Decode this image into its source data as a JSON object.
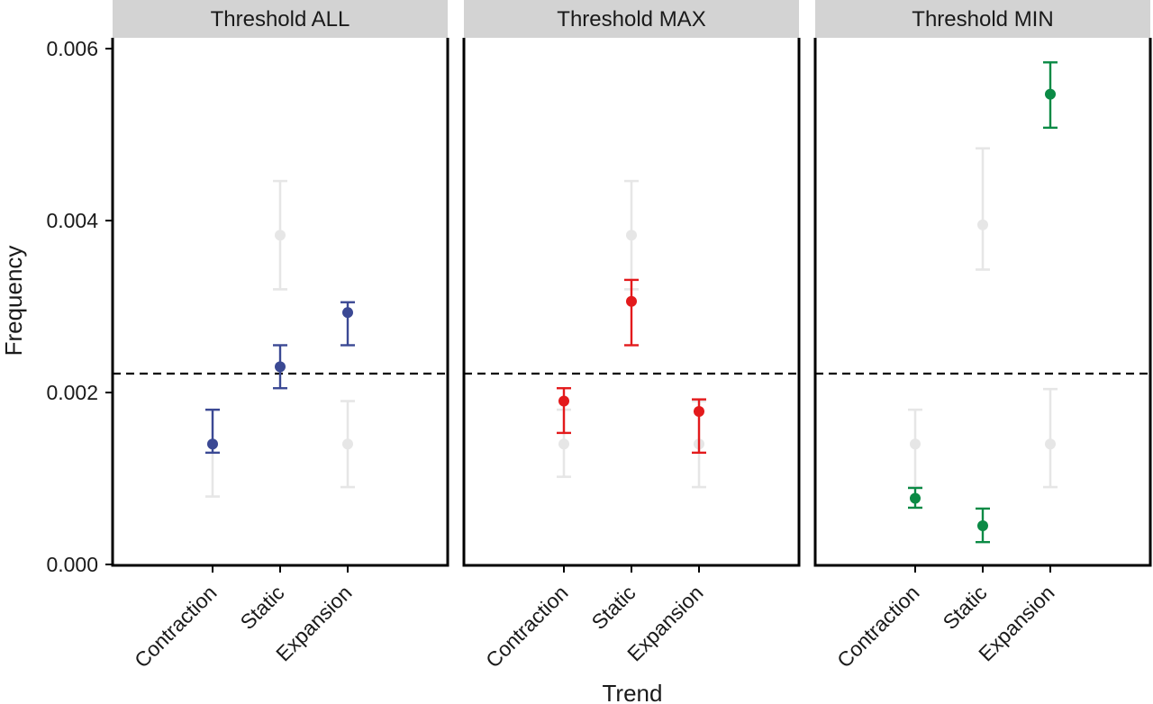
{
  "chart_data": {
    "type": "errorbar",
    "xlabel": "Trend",
    "ylabel": "Frequency",
    "ylim": [
      0,
      0.0061
    ],
    "yticks": [
      0.0,
      0.002,
      0.004,
      0.006
    ],
    "ytick_labels": [
      "0.000",
      "0.002",
      "0.004",
      "0.006"
    ],
    "categories": [
      "Contraction",
      "Static",
      "Expansion"
    ],
    "reference_line": 0.00222,
    "background_color": "#e6e6e6",
    "panels": [
      {
        "title": "Threshold ALL",
        "color": "#3b4994",
        "background": [
          {
            "category": "Contraction",
            "y": 0.0014,
            "low": 0.00079,
            "high": 0.0018
          },
          {
            "category": "Static",
            "y": 0.00383,
            "low": 0.0032,
            "high": 0.00446
          },
          {
            "category": "Expansion",
            "y": 0.0014,
            "low": 0.0009,
            "high": 0.0019
          }
        ],
        "foreground": [
          {
            "category": "Contraction",
            "y": 0.0014,
            "low": 0.0013,
            "high": 0.0018
          },
          {
            "category": "Static",
            "y": 0.0023,
            "low": 0.00205,
            "high": 0.00255
          },
          {
            "category": "Expansion",
            "y": 0.00293,
            "low": 0.00255,
            "high": 0.00305
          }
        ]
      },
      {
        "title": "Threshold MAX",
        "color": "#e31a1c",
        "background": [
          {
            "category": "Contraction",
            "y": 0.0014,
            "low": 0.00102,
            "high": 0.0018
          },
          {
            "category": "Static",
            "y": 0.00383,
            "low": 0.0032,
            "high": 0.00446
          },
          {
            "category": "Expansion",
            "y": 0.0014,
            "low": 0.0009,
            "high": 0.0019
          }
        ],
        "foreground": [
          {
            "category": "Contraction",
            "y": 0.0019,
            "low": 0.00153,
            "high": 0.00205
          },
          {
            "category": "Static",
            "y": 0.00306,
            "low": 0.00255,
            "high": 0.00331
          },
          {
            "category": "Expansion",
            "y": 0.00178,
            "low": 0.0013,
            "high": 0.00192
          }
        ]
      },
      {
        "title": "Threshold MIN",
        "color": "#0b8a45",
        "background": [
          {
            "category": "Contraction",
            "y": 0.0014,
            "low": 0.0009,
            "high": 0.0018
          },
          {
            "category": "Static",
            "y": 0.00395,
            "low": 0.00343,
            "high": 0.00484
          },
          {
            "category": "Expansion",
            "y": 0.0014,
            "low": 0.0009,
            "high": 0.00204
          }
        ],
        "foreground": [
          {
            "category": "Contraction",
            "y": 0.00077,
            "low": 0.00066,
            "high": 0.00089
          },
          {
            "category": "Static",
            "y": 0.00045,
            "low": 0.00026,
            "high": 0.00065
          },
          {
            "category": "Expansion",
            "y": 0.00547,
            "low": 0.00508,
            "high": 0.00584
          }
        ]
      }
    ]
  }
}
